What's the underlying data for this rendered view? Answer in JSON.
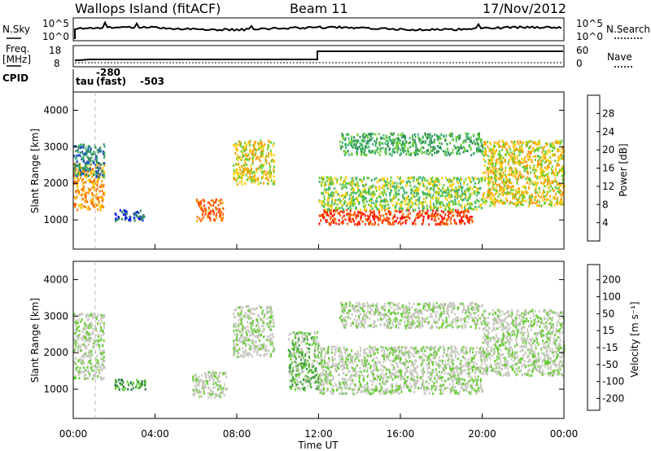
{
  "header": {
    "station": "Wallops Island (fitACF)",
    "beam": "Beam 11",
    "date": "17/Nov/2012"
  },
  "noise_panel": {
    "left_label": "N.Sky",
    "left_ticks": [
      "10^5",
      "10^0"
    ],
    "right_ticks": [
      "10^5",
      "10^0"
    ],
    "right_label": "N.Search"
  },
  "freq_panel": {
    "left_label_line1": "Freq.",
    "left_label_line2": "[MHz]",
    "left_ticks": [
      "18",
      "8"
    ],
    "right_ticks": [
      "60",
      "0"
    ],
    "right_label": "Nave",
    "cpid_label": "CPID",
    "cpid_tau": "tau",
    "cpid_code": "-280",
    "cpid_mode": "(fast)",
    "cpid_value": "-503"
  },
  "colors": {
    "power": [
      "#0000ff",
      "#1f4fbf",
      "#2e8b57",
      "#3cb371",
      "#66cc33",
      "#ffcc00",
      "#ff9900",
      "#ff6600",
      "#ff3300",
      "#ff0000"
    ],
    "velocity": [
      "#2233bb",
      "#1f6f3f",
      "#3c9c3c",
      "#66cc33",
      "#c8c8c0",
      "#c8c8c0",
      "#ff9900",
      "#ff6600",
      "#ff3300",
      "#ff0000"
    ]
  },
  "chart_data": [
    {
      "type": "heatmap",
      "name": "power",
      "ylabel": "Slant Range [km]",
      "ylim": [
        200,
        4500
      ],
      "yticks": [
        "1000",
        "2000",
        "3000",
        "4000"
      ],
      "colorbar_label": "Power [dB]",
      "colorbar_ticks": [
        "4",
        "8",
        "12",
        "16",
        "20",
        "24",
        "28"
      ],
      "regions": [
        {
          "x": [
            0.0,
            1.5
          ],
          "y": [
            1300,
            2600
          ],
          "level": 6
        },
        {
          "x": [
            0.0,
            1.5
          ],
          "y": [
            2200,
            3100
          ],
          "level": 2
        },
        {
          "x": [
            2.0,
            3.5
          ],
          "y": [
            1000,
            1300
          ],
          "level": 1
        },
        {
          "x": [
            6.0,
            7.3
          ],
          "y": [
            1000,
            1600
          ],
          "level": 7
        },
        {
          "x": [
            7.8,
            9.8
          ],
          "y": [
            2000,
            3200
          ],
          "level": 5
        },
        {
          "x": [
            12.0,
            19.5
          ],
          "y": [
            900,
            1300
          ],
          "level": 8
        },
        {
          "x": [
            12.0,
            20.0
          ],
          "y": [
            1300,
            2200
          ],
          "level": 4
        },
        {
          "x": [
            13.0,
            20.0
          ],
          "y": [
            2800,
            3400
          ],
          "level": 3
        },
        {
          "x": [
            20.0,
            24.0
          ],
          "y": [
            1400,
            3200
          ],
          "level": 5
        }
      ]
    },
    {
      "type": "heatmap",
      "name": "velocity",
      "xlabel": "Time UT",
      "ylabel": "Slant Range [km]",
      "ylim": [
        200,
        4500
      ],
      "yticks": [
        "1000",
        "2000",
        "3000",
        "4000"
      ],
      "xticks": [
        "00:00",
        "04:00",
        "08:00",
        "12:00",
        "16:00",
        "20:00",
        "00:00"
      ],
      "colorbar_label": "Velocity [m s⁻¹]",
      "colorbar_ticks": [
        "200",
        "100",
        "50",
        "15",
        "-15",
        "-50",
        "-100",
        "-200"
      ],
      "regions": [
        {
          "x": [
            0.0,
            1.5
          ],
          "y": [
            1300,
            3100
          ],
          "level": 4
        },
        {
          "x": [
            2.0,
            3.5
          ],
          "y": [
            1000,
            1300
          ],
          "level": 2
        },
        {
          "x": [
            5.8,
            7.5
          ],
          "y": [
            800,
            1500
          ],
          "level": 4
        },
        {
          "x": [
            7.8,
            9.8
          ],
          "y": [
            1900,
            3300
          ],
          "level": 4
        },
        {
          "x": [
            10.5,
            12.0
          ],
          "y": [
            1000,
            2600
          ],
          "level": 3
        },
        {
          "x": [
            12.0,
            20.0
          ],
          "y": [
            900,
            2200
          ],
          "level": 4
        },
        {
          "x": [
            13.0,
            20.0
          ],
          "y": [
            2700,
            3400
          ],
          "level": 4
        },
        {
          "x": [
            20.0,
            24.0
          ],
          "y": [
            1400,
            3200
          ],
          "level": 4
        }
      ]
    }
  ]
}
